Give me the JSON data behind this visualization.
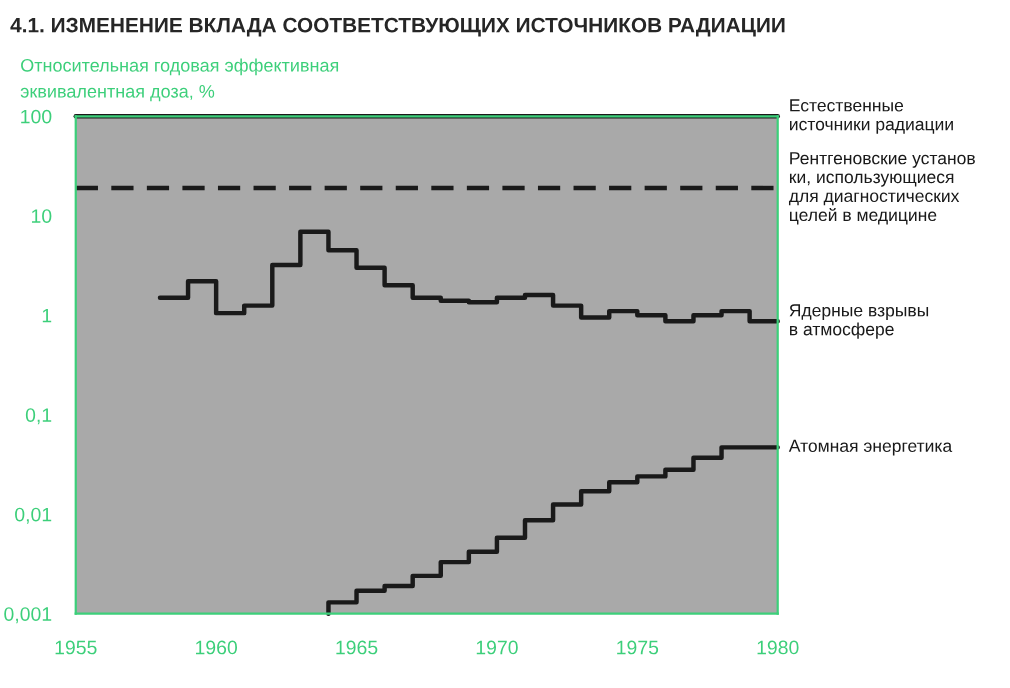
{
  "chart_data": {
    "type": "step",
    "title": "4.1. ИЗМЕНЕНИЕ ВКЛАДА СООТВЕТСТВУЮЩИХ ИСТОЧНИКОВ РАДИАЦИИ",
    "ylabel": "Относительная годовая эффективная\nэквивалентная доза, %",
    "log": "y",
    "xlim": [
      1955,
      1980
    ],
    "xticks": [
      1955,
      1960,
      1965,
      1970,
      1975,
      1980
    ],
    "ylim": [
      0.001,
      100
    ],
    "yticks": [
      {
        "value": 0.001,
        "label": "0,001"
      },
      {
        "value": 0.01,
        "label": "0,01"
      },
      {
        "value": 0.1,
        "label": "0,1"
      },
      1,
      10,
      100
    ],
    "grid": false,
    "legend": false,
    "series": [
      {
        "name": "Естественные\nисточники радиации",
        "type": "line",
        "line_style": "solid",
        "color": "#1a1a1a",
        "x": [
          1955,
          1980
        ],
        "values": [
          100,
          100
        ]
      },
      {
        "name": "Рентгеновские установ\nки, использующиеся\nдля диагностических\nцелей в медицине",
        "type": "line",
        "line_style": "dashed",
        "color": "#1a1a1a",
        "x": [
          1955,
          1980
        ],
        "values": [
          19,
          19
        ]
      },
      {
        "name": "Ядерные взрывы\nв атмосфере",
        "line_style": "solid",
        "color": "#1a1a1a",
        "x": [
          1958,
          1959,
          1960,
          1961,
          1962,
          1963,
          1964,
          1965,
          1966,
          1967,
          1968,
          1969,
          1970,
          1971,
          1972,
          1973,
          1974,
          1975,
          1976,
          1977,
          1978,
          1979,
          1980
        ],
        "values": [
          1.5,
          2.2,
          1.05,
          1.25,
          3.2,
          6.9,
          4.5,
          3.0,
          2.0,
          1.5,
          1.4,
          1.35,
          1.5,
          1.6,
          1.25,
          0.95,
          1.1,
          1.0,
          0.87,
          1.0,
          1.1,
          0.87,
          0.87
        ]
      },
      {
        "name": "Атомная энергетика",
        "line_style": "solid",
        "color": "#1a1a1a",
        "x": [
          1964,
          1964,
          1965,
          1966,
          1967,
          1968,
          1969,
          1970,
          1971,
          1972,
          1973,
          1974,
          1975,
          1976,
          1977,
          1978,
          1980
        ],
        "values": [
          0.001,
          0.0013,
          0.0017,
          0.0019,
          0.0024,
          0.0033,
          0.0042,
          0.0058,
          0.0087,
          0.0125,
          0.017,
          0.021,
          0.024,
          0.028,
          0.037,
          0.047,
          0.047
        ]
      }
    ]
  }
}
